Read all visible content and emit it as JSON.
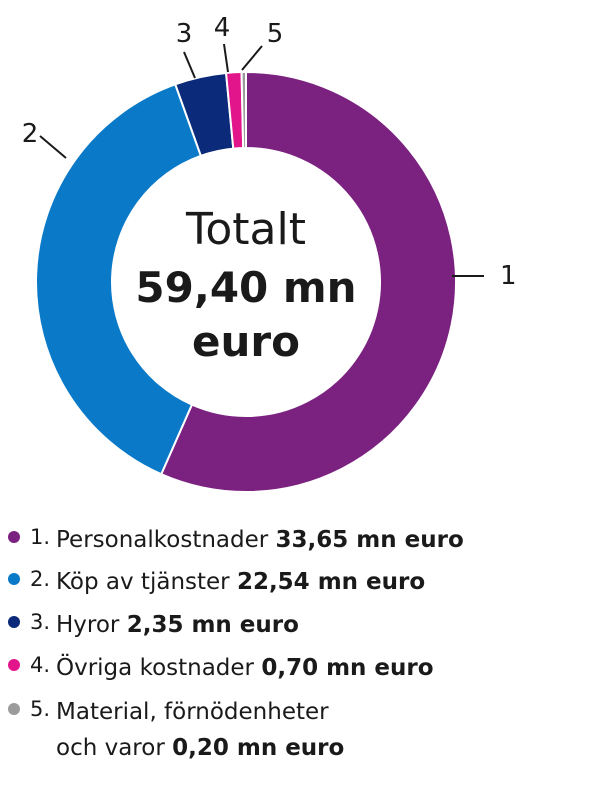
{
  "center": {
    "line1": "Totalt",
    "line2": "59,40 mn",
    "line3": "euro"
  },
  "chart_data": {
    "type": "pie",
    "total": 59.4,
    "unit": "mn euro",
    "slices": [
      {
        "label": "1",
        "name": "Personalkostnader",
        "value": 33.65,
        "value_text": "33,65 mn euro",
        "color": "#7b2180"
      },
      {
        "label": "2",
        "name": "Köp av tjänster",
        "value": 22.54,
        "value_text": "22,54 mn euro",
        "color": "#0a7ac8"
      },
      {
        "label": "3",
        "name": "Hyror",
        "value": 2.35,
        "value_text": "2,35 mn euro",
        "color": "#0b2a7a"
      },
      {
        "label": "4",
        "name": "Övriga kostnader",
        "value": 0.7,
        "value_text": "0,70 mn euro",
        "color": "#e2158a"
      },
      {
        "label": "5",
        "name": "Material, förnödenheter och varor",
        "name_line1": "Material, förnödenheter",
        "name_line2": "och varor",
        "value": 0.2,
        "value_text": "0,20 mn euro",
        "color": "#9b9b9b"
      }
    ]
  },
  "legend": [
    {
      "num": "1.",
      "name": "Personalkostnader",
      "value": "33,65 mn euro"
    },
    {
      "num": "2.",
      "name": "Köp av tjänster",
      "value": "22,54 mn euro"
    },
    {
      "num": "3.",
      "name": "Hyror",
      "value": "2,35 mn euro"
    },
    {
      "num": "4.",
      "name": "Övriga kostnader",
      "value": "0,70 mn euro"
    },
    {
      "num": "5.",
      "name_line1": "Material, förnödenheter",
      "name_line2": "och varor",
      "value": "0,20 mn euro"
    }
  ]
}
